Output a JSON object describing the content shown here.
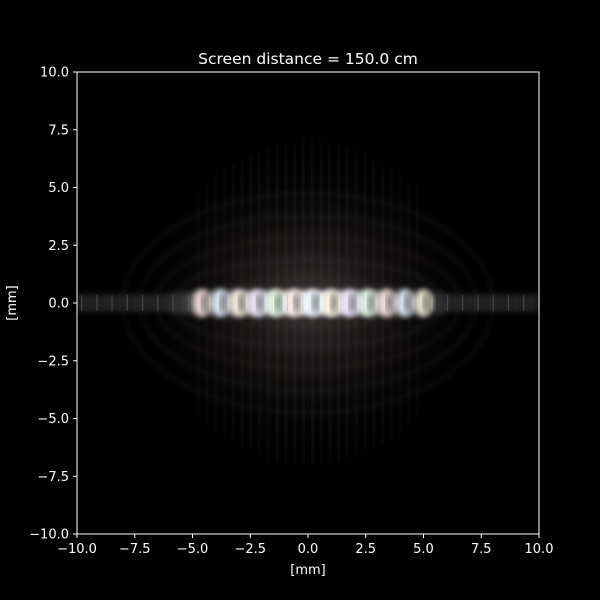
{
  "chart_data": {
    "type": "heatmap",
    "title": "Screen distance = 150.0 cm",
    "xlabel": "[mm]",
    "ylabel": "[mm]",
    "xlim": [
      -10.0,
      10.0
    ],
    "ylim": [
      -10.0,
      10.0
    ],
    "xticks": [
      -10.0,
      -7.5,
      -5.0,
      -2.5,
      0.0,
      2.5,
      5.0,
      7.5,
      10.0
    ],
    "xtick_labels": [
      "−10.0",
      "−7.5",
      "−5.0",
      "−2.5",
      "0.0",
      "2.5",
      "5.0",
      "7.5",
      "10.0"
    ],
    "yticks": [
      -10.0,
      -7.5,
      -5.0,
      -2.5,
      0.0,
      2.5,
      5.0,
      7.5,
      10.0
    ],
    "ytick_labels": [
      "−10.0",
      "−7.5",
      "−5.0",
      "−2.5",
      "0.0",
      "2.5",
      "5.0",
      "7.5",
      "10.0"
    ],
    "grid": false,
    "background": "#000000",
    "foreground": "#ffffff",
    "pattern": {
      "description": "polychromatic diffraction pattern",
      "central_band_y": 0.0,
      "band_half_width_x": 5.0,
      "band_extent_x": [
        -10.0,
        10.0
      ],
      "halo_extent_y": [
        -7.0,
        7.0
      ],
      "bright_spots_x": [
        -4.6,
        -3.8,
        -3.0,
        -2.2,
        -1.4,
        -0.6,
        0.2,
        1.0,
        1.8,
        2.6,
        3.4,
        4.2,
        5.0
      ]
    }
  }
}
